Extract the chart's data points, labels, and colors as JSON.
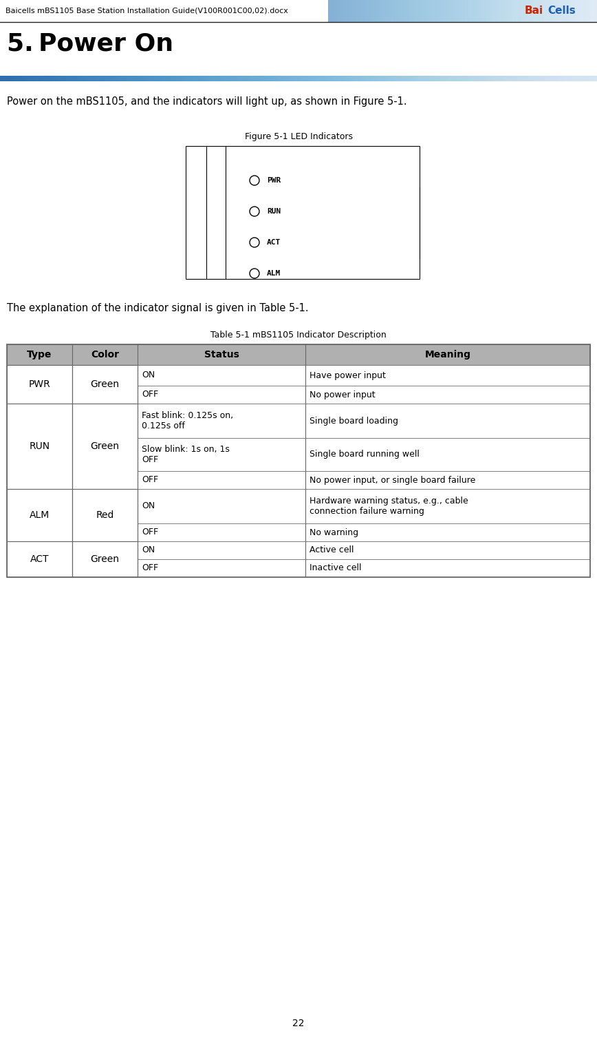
{
  "page_width": 8.68,
  "page_height": 15.13,
  "dpi": 100,
  "bg_color": "#ffffff",
  "header_text": "Baicells mBS1105 Base Station Installation Guide(V100R001C00,02).docx",
  "logo_bai": "Bai",
  "logo_cells": "Cells",
  "section_title": "5. Power On",
  "body_text1": "Power on the mBS1105, and the indicators will light up, as shown in Figure 5-1.",
  "figure_caption": "Figure 5-1 LED Indicators",
  "led_labels": [
    "PWR",
    "RUN",
    "ACT",
    "ALM"
  ],
  "body_text2": "The explanation of the indicator signal is given in Table 5-1.",
  "table_caption": "Table 5-1 mBS1105 Indicator Description",
  "table_header": [
    "Type",
    "Color",
    "Status",
    "Meaning"
  ],
  "table_header_bg": "#b0b0b0",
  "table_rows": [
    [
      "PWR",
      "Green",
      "ON",
      "Have power input"
    ],
    [
      "",
      "",
      "OFF",
      "No power input"
    ],
    [
      "RUN",
      "Green",
      "Fast blink: 0.125s on,\n0.125s off",
      "Single board loading"
    ],
    [
      "",
      "",
      "Slow blink: 1s on, 1s\nOFF",
      "Single board running well"
    ],
    [
      "",
      "",
      "OFF",
      "No power input, or single board failure"
    ],
    [
      "ALM",
      "Red",
      "ON",
      "Hardware warning status, e.g., cable\nconnection failure warning"
    ],
    [
      "",
      "",
      "OFF",
      "No warning"
    ],
    [
      "ACT",
      "Green",
      "ON",
      "Active cell"
    ],
    [
      "",
      "",
      "OFF",
      "Inactive cell"
    ]
  ],
  "type_merges": [
    [
      0,
      2,
      "PWR",
      "Green"
    ],
    [
      2,
      5,
      "RUN",
      "Green"
    ],
    [
      5,
      7,
      "ALM",
      "Red"
    ],
    [
      7,
      9,
      "ACT",
      "Green"
    ]
  ],
  "footer_text": "22",
  "accent_blue": "#3a7dbf",
  "table_border_color": "#666666",
  "header_line_color": "#222222"
}
